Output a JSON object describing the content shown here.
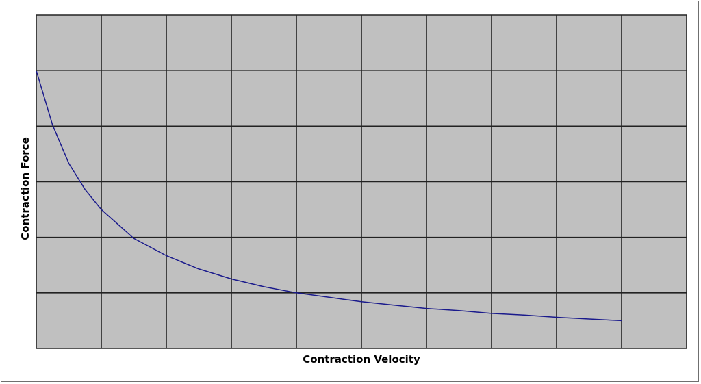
{
  "chart_data": {
    "type": "line",
    "title": "",
    "xlabel": "Contraction Velocity",
    "ylabel": "Contraction Force",
    "xlim": [
      0,
      10
    ],
    "ylim": [
      0,
      6
    ],
    "grid": true,
    "x_tick_count": 10,
    "y_tick_count": 6,
    "colors": {
      "plot_background": "#c0c0c0",
      "grid": "#222222",
      "series": "#1a1a8c"
    },
    "series": [
      {
        "x": [
          0,
          0.25,
          0.5,
          0.75,
          1,
          1.5,
          2,
          2.5,
          3,
          3.5,
          4,
          4.5,
          5,
          5.5,
          6,
          6.5,
          7,
          7.5,
          8,
          8.5,
          9
        ],
        "values": [
          5.0,
          4.02,
          3.33,
          2.86,
          2.5,
          1.98,
          1.67,
          1.43,
          1.25,
          1.11,
          1.0,
          0.92,
          0.84,
          0.78,
          0.72,
          0.68,
          0.63,
          0.6,
          0.56,
          0.53,
          0.5
        ]
      }
    ]
  }
}
